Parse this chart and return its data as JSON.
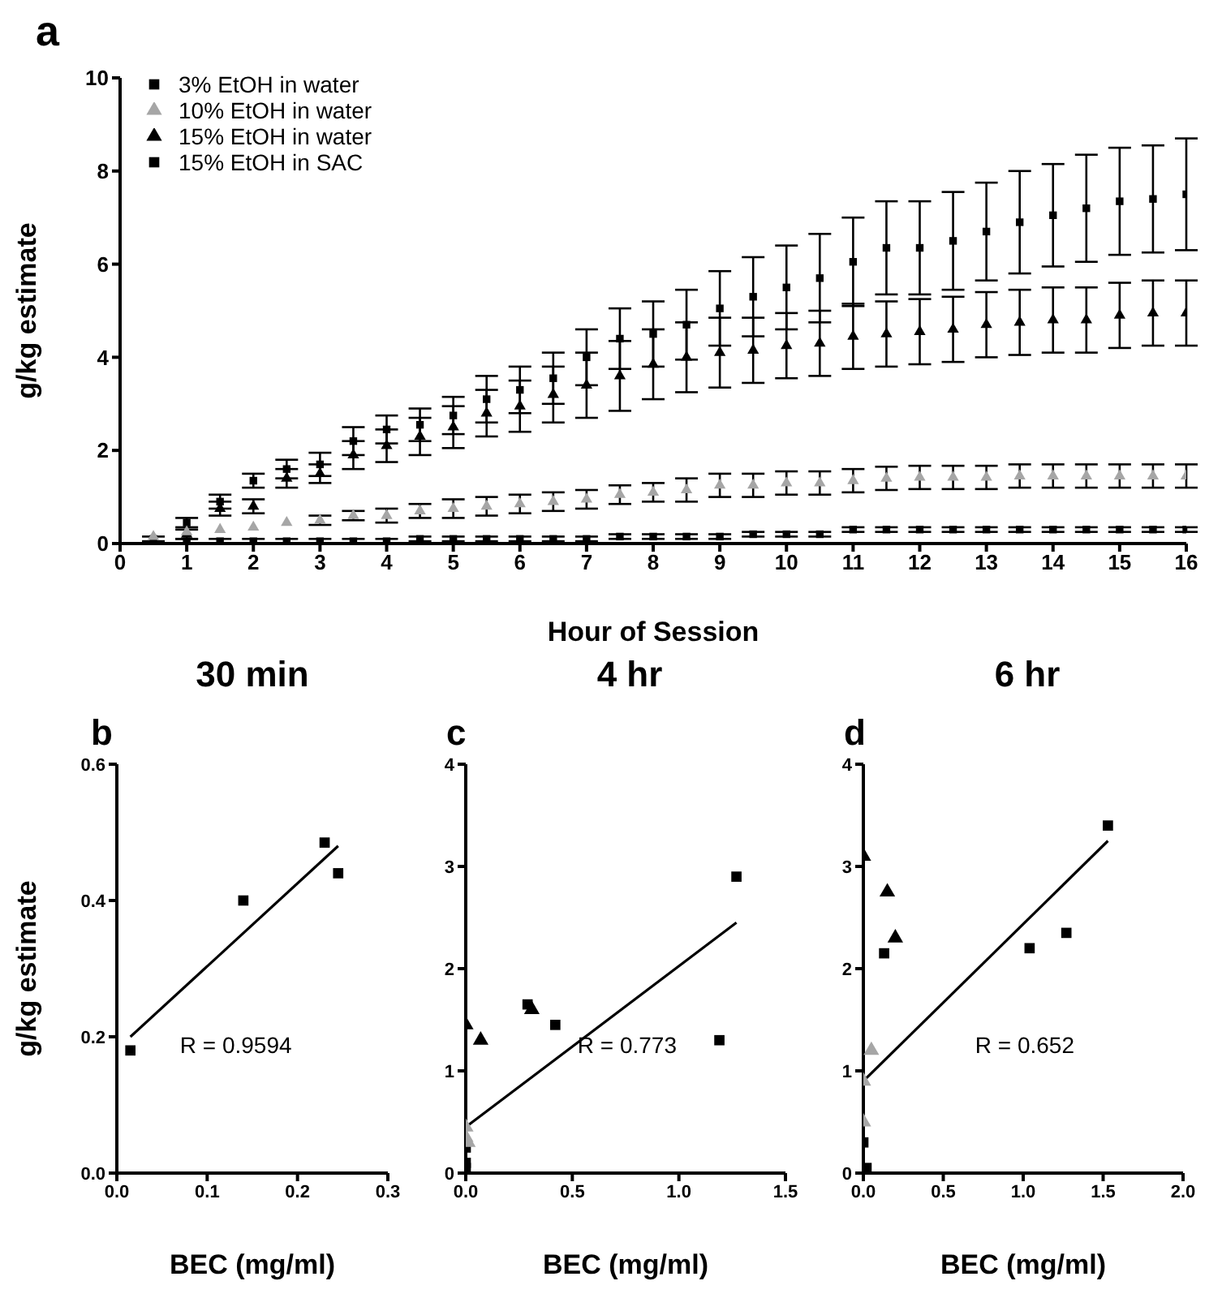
{
  "chart_data": [
    {
      "type": "scatter",
      "xlabel": "Hour of Session",
      "ylabel": "g/kg estimate",
      "annotations": [
        "a"
      ],
      "x": [
        0.5,
        1,
        1.5,
        2,
        2.5,
        3,
        3.5,
        4,
        4.5,
        5,
        5.5,
        6,
        6.5,
        7,
        7.5,
        8,
        8.5,
        9,
        9.5,
        10,
        10.5,
        11,
        11.5,
        12,
        12.5,
        13,
        13.5,
        14,
        14.5,
        15,
        15.5,
        16
      ],
      "xlim": [
        0,
        16
      ],
      "xticks": [
        0,
        1,
        2,
        3,
        4,
        5,
        6,
        7,
        8,
        9,
        10,
        11,
        12,
        13,
        14,
        15,
        16
      ],
      "ylim": [
        0,
        10
      ],
      "yticks": [
        0,
        2,
        4,
        6,
        8,
        10
      ],
      "grid": false,
      "legend": "top left",
      "series": [
        {
          "name": "3% EtOH in water",
          "color": "#000000",
          "marker": "square",
          "values": [
            null,
            0.05,
            0.05,
            0.05,
            0.05,
            0.05,
            0.05,
            0.05,
            0.1,
            0.1,
            0.1,
            0.1,
            0.1,
            0.1,
            0.15,
            0.15,
            0.15,
            0.15,
            0.2,
            0.2,
            0.2,
            0.3,
            0.3,
            0.3,
            0.3,
            0.3,
            0.3,
            0.3,
            0.3,
            0.3,
            0.3,
            0.3
          ],
          "errors": [
            null,
            0.05,
            0.05,
            0.05,
            0.05,
            0.05,
            0.05,
            0.05,
            0.05,
            0.05,
            0.05,
            0.05,
            0.05,
            0.05,
            0.05,
            0.05,
            0.05,
            0.05,
            0.05,
            0.05,
            0.05,
            0.05,
            0.05,
            0.05,
            0.05,
            0.05,
            0.05,
            0.05,
            0.05,
            0.05,
            0.05,
            0.05
          ]
        },
        {
          "name": "10% EtOH in water",
          "color": "#a6a6a6",
          "marker": "triangle",
          "values": [
            0.15,
            0.25,
            0.3,
            0.35,
            0.45,
            0.5,
            0.6,
            0.6,
            0.7,
            0.75,
            0.8,
            0.85,
            0.9,
            0.95,
            1.05,
            1.1,
            1.15,
            1.25,
            1.25,
            1.3,
            1.3,
            1.35,
            1.4,
            1.42,
            1.42,
            1.42,
            1.45,
            1.45,
            1.45,
            1.45,
            1.45,
            1.45
          ],
          "errors": [
            null,
            null,
            null,
            null,
            null,
            0.1,
            0.1,
            0.15,
            0.15,
            0.2,
            0.2,
            0.2,
            0.2,
            0.2,
            0.2,
            0.2,
            0.25,
            0.25,
            0.25,
            0.25,
            0.25,
            0.25,
            0.25,
            0.25,
            0.25,
            0.25,
            0.25,
            0.25,
            0.25,
            0.25,
            0.25,
            0.25
          ]
        },
        {
          "name": "15% EtOH in water",
          "color": "#000000",
          "marker": "triangle",
          "values": [
            null,
            0.2,
            0.75,
            0.8,
            1.4,
            1.5,
            1.9,
            2.1,
            2.3,
            2.5,
            2.8,
            2.95,
            3.2,
            3.4,
            3.6,
            3.85,
            4.0,
            4.1,
            4.15,
            4.25,
            4.3,
            4.45,
            4.5,
            4.55,
            4.6,
            4.7,
            4.75,
            4.8,
            4.8,
            4.9,
            4.95,
            4.95
          ],
          "errors": [
            null,
            0.1,
            0.15,
            0.15,
            0.2,
            0.2,
            0.3,
            0.35,
            0.4,
            0.45,
            0.5,
            0.55,
            0.6,
            0.7,
            0.75,
            0.75,
            0.75,
            0.75,
            0.7,
            0.7,
            0.7,
            0.7,
            0.7,
            0.7,
            0.7,
            0.7,
            0.7,
            0.7,
            0.7,
            0.7,
            0.7,
            0.7
          ]
        },
        {
          "name": "15% EtOH in SAC",
          "color": "#000000",
          "marker": "square",
          "values": [
            0.1,
            0.45,
            0.9,
            1.35,
            1.6,
            1.7,
            2.2,
            2.45,
            2.55,
            2.75,
            3.1,
            3.3,
            3.55,
            4.0,
            4.4,
            4.5,
            4.7,
            5.05,
            5.3,
            5.5,
            5.7,
            6.05,
            6.35,
            6.35,
            6.5,
            6.7,
            6.9,
            7.05,
            7.2,
            7.35,
            7.4,
            7.5
          ],
          "errors": [
            0.05,
            0.1,
            0.15,
            0.15,
            0.2,
            0.25,
            0.3,
            0.3,
            0.35,
            0.4,
            0.5,
            0.5,
            0.55,
            0.6,
            0.65,
            0.7,
            0.75,
            0.8,
            0.85,
            0.9,
            0.95,
            0.95,
            1.0,
            1.0,
            1.05,
            1.05,
            1.1,
            1.1,
            1.15,
            1.15,
            1.15,
            1.2
          ]
        }
      ]
    },
    {
      "type": "scatter",
      "title": "30 min",
      "xlabel": "BEC (mg/ml)",
      "ylabel": "g/kg estimate",
      "annotations": [
        "b",
        "R = 0.9594"
      ],
      "xlim": [
        0,
        0.3
      ],
      "xticks": [
        {
          "value": 0,
          "label": "0.0"
        },
        0.1,
        0.2,
        0.3
      ],
      "ylim": [
        0,
        0.6
      ],
      "yticks": [
        {
          "value": 0,
          "label": "0.0"
        },
        0.2,
        0.4,
        0.6
      ],
      "grid": false,
      "marker": "square",
      "series": [
        {
          "color": "#000000",
          "x": [
            0.015,
            0.14,
            0.23,
            0.245
          ],
          "values": [
            0.18,
            0.4,
            0.485,
            0.44
          ]
        },
        {
          "type": "line",
          "color": "#000000",
          "marker": "none",
          "x": [
            0.015,
            0.245
          ],
          "values": [
            0.2,
            0.48
          ]
        }
      ]
    },
    {
      "type": "scatter",
      "title": "4 hr",
      "xlabel": "BEC (mg/ml)",
      "annotations": [
        "c",
        "R = 0.773"
      ],
      "xlim": [
        0,
        1.5
      ],
      "xticks": [
        {
          "value": 0,
          "label": "0.0"
        },
        0.5,
        {
          "value": 1,
          "label": "1.0"
        },
        1.5
      ],
      "ylim": [
        0,
        4
      ],
      "yticks": [
        0,
        1,
        2,
        3,
        4
      ],
      "grid": false,
      "series": [
        {
          "color": "#000000",
          "marker": "square",
          "x": [
            0.29,
            0.42,
            1.19,
            1.27
          ],
          "values": [
            1.65,
            1.45,
            1.3,
            2.9
          ]
        },
        {
          "color": "#000000",
          "marker": "triangle",
          "x": [
            0.0,
            0.07,
            0.31
          ],
          "values": [
            1.45,
            1.3,
            1.6
          ]
        },
        {
          "color": "#a6a6a6",
          "marker": "triangle",
          "x": [
            0.0,
            0.01,
            0.0
          ],
          "values": [
            0.35,
            0.3,
            0.45
          ]
        },
        {
          "color": "#000000",
          "marker": "square",
          "x": [
            0.0,
            0.0,
            0.0
          ],
          "values": [
            0.05,
            0.1,
            0.25
          ]
        },
        {
          "type": "line",
          "color": "#000000",
          "marker": "none",
          "x": [
            0.0,
            1.27
          ],
          "values": [
            0.45,
            2.45
          ]
        }
      ]
    },
    {
      "type": "scatter",
      "title": "6 hr",
      "xlabel": "BEC (mg/ml)",
      "annotations": [
        "d",
        "R = 0.652"
      ],
      "xlim": [
        0,
        2
      ],
      "xticks": [
        {
          "value": 0,
          "label": "0.0"
        },
        0.5,
        {
          "value": 1,
          "label": "1.0"
        },
        1.5,
        {
          "value": 2,
          "label": "2.0"
        }
      ],
      "ylim": [
        0,
        4
      ],
      "yticks": [
        0,
        1,
        2,
        3,
        4
      ],
      "grid": false,
      "series": [
        {
          "color": "#000000",
          "marker": "square",
          "x": [
            0.13,
            1.04,
            1.27,
            1.53
          ],
          "values": [
            2.15,
            2.2,
            2.35,
            3.4
          ]
        },
        {
          "color": "#000000",
          "marker": "triangle",
          "x": [
            0.0,
            0.15,
            0.2
          ],
          "values": [
            3.1,
            2.75,
            2.3
          ]
        },
        {
          "color": "#a6a6a6",
          "marker": "triangle",
          "x": [
            0.05,
            0.0,
            0.0
          ],
          "values": [
            1.2,
            0.9,
            0.5
          ]
        },
        {
          "color": "#000000",
          "marker": "square",
          "x": [
            0.0,
            0.02
          ],
          "values": [
            0.3,
            0.05
          ]
        },
        {
          "type": "line",
          "color": "#000000",
          "marker": "none",
          "x": [
            0.0,
            1.53
          ],
          "values": [
            0.9,
            3.25
          ]
        }
      ]
    }
  ]
}
